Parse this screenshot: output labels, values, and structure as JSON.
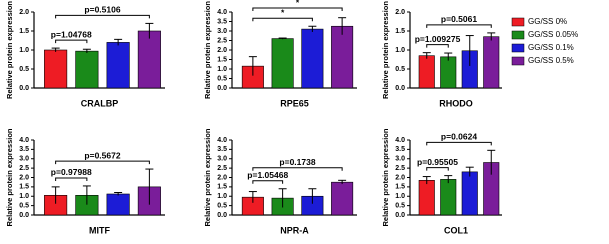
{
  "legend": {
    "position": "right",
    "items": [
      {
        "name": "GG/SS 0%",
        "color": "#ee1c24"
      },
      {
        "name": "GG/SS 0.05%",
        "color": "#1a8a1a"
      },
      {
        "name": "GG/SS 0.1%",
        "color": "#1c1cd6"
      },
      {
        "name": "GG/SS 0.5%",
        "color": "#7a1d9a"
      }
    ]
  },
  "chart_data": [
    {
      "type": "bar",
      "ylabel": "Relative protein expression",
      "xlabel": "CRALBP",
      "categories": [
        null,
        null,
        null,
        null
      ],
      "values": [
        1.0,
        0.97,
        1.2,
        1.5
      ],
      "errors": [
        0.05,
        0.05,
        0.08,
        0.2
      ],
      "ylim": [
        0,
        2
      ],
      "yticks": [
        {
          "value": 0,
          "label": "0.0"
        },
        0.5,
        {
          "value": 1,
          "label": "1.0"
        },
        1.5,
        {
          "value": 2,
          "label": "2.0"
        }
      ],
      "annotations": [
        {
          "text": "p=1.04768",
          "from": 0,
          "to": 1
        },
        {
          "text": "p=0.5106",
          "from": 0,
          "to": 3
        }
      ]
    },
    {
      "type": "bar",
      "ylabel": "Relative protein expression",
      "xlabel": "RPE65",
      "categories": [
        null,
        null,
        null,
        null
      ],
      "values": [
        1.15,
        2.6,
        3.1,
        3.25
      ],
      "errors": [
        0.5,
        0.03,
        0.15,
        0.45
      ],
      "ylim": [
        0,
        4
      ],
      "yticks": [
        {
          "value": 0,
          "label": "0.0"
        },
        0.5,
        {
          "value": 1,
          "label": "1.0"
        },
        1.5,
        {
          "value": 2,
          "label": "2.0"
        },
        2.5,
        {
          "value": 3,
          "label": "3.0"
        },
        3.5,
        {
          "value": 4,
          "label": "4.0"
        }
      ],
      "annotations": [
        {
          "text": "*",
          "from": 0,
          "to": 2
        },
        {
          "text": "*",
          "from": 0,
          "to": 3
        }
      ]
    },
    {
      "type": "bar",
      "ylabel": "Relative protein expression",
      "xlabel": "RHODO",
      "categories": [
        null,
        null,
        null,
        null
      ],
      "values": [
        0.85,
        0.82,
        0.98,
        1.35
      ],
      "errors": [
        0.08,
        0.1,
        0.4,
        0.1
      ],
      "ylim": [
        0,
        2
      ],
      "yticks": [
        {
          "value": 0,
          "label": "0.0"
        },
        0.5,
        {
          "value": 1,
          "label": "1.0"
        },
        1.5,
        {
          "value": 2,
          "label": "2.0"
        }
      ],
      "annotations": [
        {
          "text": "p=1.009275",
          "from": 0,
          "to": 1
        },
        {
          "text": "p=0.5061",
          "from": 0,
          "to": 3
        }
      ]
    },
    {
      "type": "bar",
      "ylabel": "Relative protein expression",
      "xlabel": "MITF",
      "categories": [
        null,
        null,
        null,
        null
      ],
      "values": [
        1.05,
        1.05,
        1.12,
        1.5
      ],
      "errors": [
        0.45,
        0.5,
        0.08,
        0.95
      ],
      "ylim": [
        0,
        4
      ],
      "yticks": [
        {
          "value": 0,
          "label": "0.0"
        },
        0.5,
        {
          "value": 1,
          "label": "1.0"
        },
        1.5,
        {
          "value": 2,
          "label": "2.0"
        },
        2.5,
        {
          "value": 3,
          "label": "3.0"
        },
        3.5,
        {
          "value": 4,
          "label": "4.0"
        }
      ],
      "annotations": [
        {
          "text": "p=0.97988",
          "from": 0,
          "to": 1
        },
        {
          "text": "p=0.5672",
          "from": 0,
          "to": 3
        }
      ]
    },
    {
      "type": "bar",
      "ylabel": "Relative protein expression",
      "xlabel": "NPR-A",
      "categories": [
        null,
        null,
        null,
        null
      ],
      "values": [
        0.95,
        0.9,
        1.0,
        1.75
      ],
      "errors": [
        0.3,
        0.5,
        0.4,
        0.1
      ],
      "ylim": [
        0,
        4
      ],
      "yticks": [
        {
          "value": 0,
          "label": "0.0"
        },
        0.5,
        {
          "value": 1,
          "label": "1.0"
        },
        1.5,
        {
          "value": 2,
          "label": "2.0"
        },
        2.5,
        {
          "value": 3,
          "label": "3.0"
        },
        3.5,
        {
          "value": 4,
          "label": "4.0"
        }
      ],
      "annotations": [
        {
          "text": "p=1.05468",
          "from": 0,
          "to": 1
        },
        {
          "text": "p=0.1738",
          "from": 0,
          "to": 3
        }
      ]
    },
    {
      "type": "bar",
      "ylabel": "Relative protein expression",
      "xlabel": "COL1",
      "categories": [
        null,
        null,
        null,
        null
      ],
      "values": [
        1.85,
        1.9,
        2.3,
        2.8
      ],
      "errors": [
        0.2,
        0.2,
        0.25,
        0.65
      ],
      "ylim": [
        0,
        4
      ],
      "yticks": [
        {
          "value": 0,
          "label": "0.0"
        },
        0.5,
        {
          "value": 1,
          "label": "1.0"
        },
        1.5,
        {
          "value": 2,
          "label": "2.0"
        },
        2.5,
        {
          "value": 3,
          "label": "3.0"
        },
        3.5,
        {
          "value": 4,
          "label": "4.0"
        }
      ],
      "annotations": [
        {
          "text": "p=0.95505",
          "from": 0,
          "to": 1
        },
        {
          "text": "p=0.0624",
          "from": 0,
          "to": 3
        }
      ]
    }
  ]
}
